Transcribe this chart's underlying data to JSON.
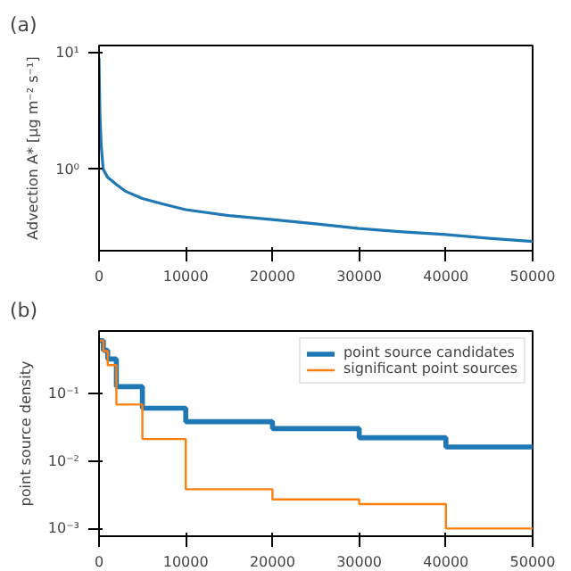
{
  "chart_data": [
    {
      "type": "line",
      "title": "(a)",
      "ylabel": "Advection A* [μg m⁻² s⁻¹]",
      "log": "y",
      "grid": false,
      "legend": false,
      "x": [
        0,
        50,
        100,
        250,
        480,
        1000,
        2000,
        3000,
        5000,
        7500,
        10000,
        15000,
        20000,
        25000,
        30000,
        35000,
        40000,
        45000,
        50000
      ],
      "series": [
        {
          "color": "#1f77b4",
          "values": [
            9,
            5,
            3,
            1.6,
            1.0,
            0.85,
            0.74,
            0.65,
            0.56,
            0.5,
            0.45,
            0.4,
            0.37,
            0.34,
            0.31,
            0.29,
            0.275,
            0.255,
            0.24
          ]
        }
      ],
      "xlim": [
        0,
        50000
      ],
      "xticks": [
        0,
        10000,
        20000,
        30000,
        40000,
        50000
      ],
      "ylim": [
        0.2,
        11.5
      ],
      "yticks": [
        {
          "value": 1,
          "label": "10⁰"
        },
        {
          "value": 10,
          "label": "10¹"
        }
      ]
    },
    {
      "type": "step",
      "title": "(b)",
      "ylabel": "point source density",
      "log": "y",
      "grid": false,
      "legend": "top right",
      "x": [
        0,
        500,
        1000,
        2000,
        5000,
        10000,
        20000,
        30000,
        40000,
        50000
      ],
      "series": [
        {
          "name": "point source candidates",
          "color": "#1f77b4",
          "values": [
            0.6,
            0.43,
            0.32,
            0.125,
            0.06,
            0.038,
            0.03,
            0.022,
            0.016,
            0.016
          ]
        },
        {
          "name": "significant point sources",
          "color": "#ff7f0e",
          "values": [
            0.6,
            0.42,
            0.26,
            0.068,
            0.021,
            0.0038,
            0.0027,
            0.0023,
            0.001,
            0.001
          ]
        }
      ],
      "xlim": [
        0,
        50000
      ],
      "xticks": [
        0,
        10000,
        20000,
        30000,
        40000,
        50000
      ],
      "ylim": [
        0.00077,
        0.83
      ],
      "yticks": [
        {
          "value": 0.001,
          "label": "10⁻³"
        },
        {
          "value": 0.01,
          "label": "10⁻²"
        },
        {
          "value": 0.1,
          "label": "10⁻¹"
        }
      ]
    }
  ]
}
